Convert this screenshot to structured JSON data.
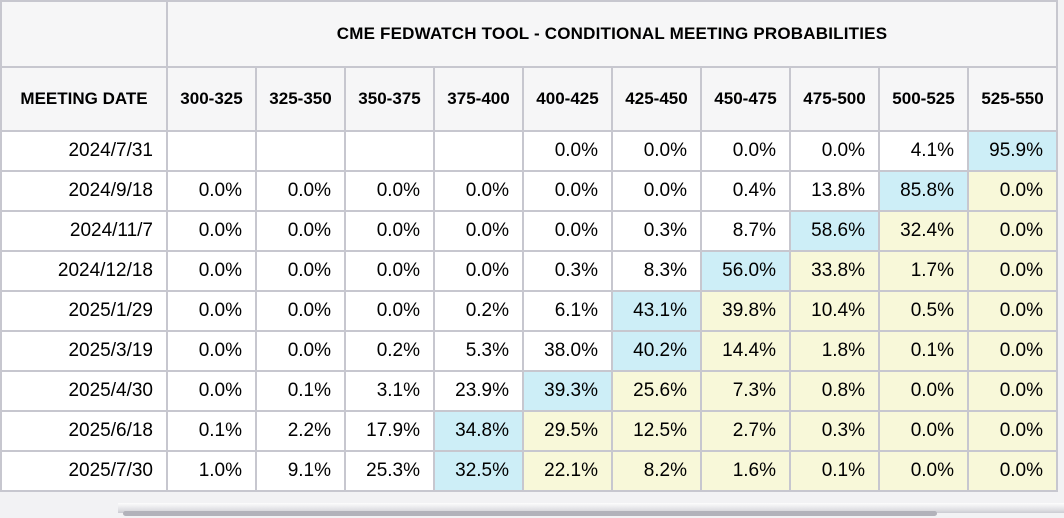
{
  "header": {
    "title": "CME FEDWATCH TOOL - CONDITIONAL MEETING PROBABILITIES",
    "date_column_label": "MEETING DATE",
    "rate_columns": [
      "300-325",
      "325-350",
      "350-375",
      "375-400",
      "400-425",
      "425-450",
      "450-475",
      "475-500",
      "500-525",
      "525-550"
    ]
  },
  "rows": [
    {
      "date": "2024/7/31",
      "cells": [
        "",
        "",
        "",
        "",
        "0.0%",
        "0.0%",
        "0.0%",
        "0.0%",
        "4.1%",
        "95.9%"
      ],
      "max_col": 9
    },
    {
      "date": "2024/9/18",
      "cells": [
        "0.0%",
        "0.0%",
        "0.0%",
        "0.0%",
        "0.0%",
        "0.0%",
        "0.4%",
        "13.8%",
        "85.8%",
        "0.0%"
      ],
      "max_col": 8
    },
    {
      "date": "2024/11/7",
      "cells": [
        "0.0%",
        "0.0%",
        "0.0%",
        "0.0%",
        "0.0%",
        "0.3%",
        "8.7%",
        "58.6%",
        "32.4%",
        "0.0%"
      ],
      "max_col": 7
    },
    {
      "date": "2024/12/18",
      "cells": [
        "0.0%",
        "0.0%",
        "0.0%",
        "0.0%",
        "0.3%",
        "8.3%",
        "56.0%",
        "33.8%",
        "1.7%",
        "0.0%"
      ],
      "max_col": 6
    },
    {
      "date": "2025/1/29",
      "cells": [
        "0.0%",
        "0.0%",
        "0.0%",
        "0.2%",
        "6.1%",
        "43.1%",
        "39.8%",
        "10.4%",
        "0.5%",
        "0.0%"
      ],
      "max_col": 5
    },
    {
      "date": "2025/3/19",
      "cells": [
        "0.0%",
        "0.0%",
        "0.2%",
        "5.3%",
        "38.0%",
        "40.2%",
        "14.4%",
        "1.8%",
        "0.1%",
        "0.0%"
      ],
      "max_col": 5
    },
    {
      "date": "2025/4/30",
      "cells": [
        "0.0%",
        "0.1%",
        "3.1%",
        "23.9%",
        "39.3%",
        "25.6%",
        "7.3%",
        "0.8%",
        "0.0%",
        "0.0%"
      ],
      "max_col": 4
    },
    {
      "date": "2025/6/18",
      "cells": [
        "0.1%",
        "2.2%",
        "17.9%",
        "34.8%",
        "29.5%",
        "12.5%",
        "2.7%",
        "0.3%",
        "0.0%",
        "0.0%"
      ],
      "max_col": 3
    },
    {
      "date": "2025/7/30",
      "cells": [
        "1.0%",
        "9.1%",
        "25.3%",
        "32.5%",
        "22.1%",
        "8.2%",
        "1.6%",
        "0.1%",
        "0.0%",
        "0.0%"
      ],
      "max_col": 3
    }
  ],
  "colors": {
    "max_probability_highlight": "#cdeef7",
    "right_of_max_highlight": "#f8f8d9",
    "header_background": "#f6f6f7",
    "table_border": "#c7c7cf",
    "scrollbar_thumb": "#b2b2ba"
  }
}
